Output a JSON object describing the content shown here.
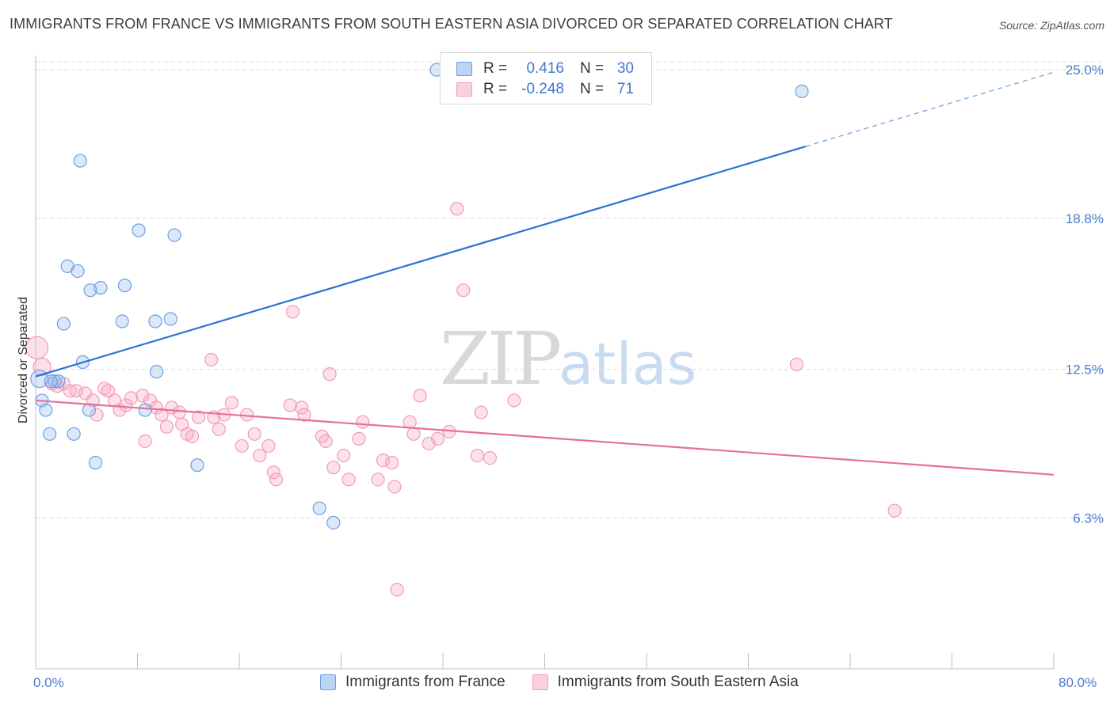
{
  "header": {
    "title": "IMMIGRANTS FROM FRANCE VS IMMIGRANTS FROM SOUTH EASTERN ASIA DIVORCED OR SEPARATED CORRELATION CHART",
    "source": "Source: ZipAtlas.com"
  },
  "watermark": {
    "zip": "ZIP",
    "atlas": "atlas"
  },
  "legend": {
    "france": {
      "r_key": "R =",
      "r_val": "0.416",
      "n_key": "N =",
      "n_val": "30"
    },
    "sea": {
      "r_key": "R =",
      "r_val": "-0.248",
      "n_key": "N =",
      "n_val": "71"
    }
  },
  "bottom_legend": {
    "france": "Immigrants from France",
    "sea": "Immigrants from South Eastern Asia"
  },
  "axes": {
    "x_min_label": "0.0%",
    "x_max_label": "80.0%"
  },
  "chart_data": {
    "type": "scatter",
    "title": "IMMIGRANTS FROM FRANCE VS IMMIGRANTS FROM SOUTH EASTERN ASIA DIVORCED OR SEPARATED CORRELATION CHART",
    "xlabel": "",
    "ylabel": "Divorced or Separated",
    "xlim": [
      0,
      80
    ],
    "ylim": [
      0,
      25.6
    ],
    "y_ticks": [
      {
        "value": 6.3,
        "label": "6.3%"
      },
      {
        "value": 12.5,
        "label": "12.5%"
      },
      {
        "value": 18.8,
        "label": "18.8%"
      },
      {
        "value": 25.0,
        "label": "25.0%"
      }
    ],
    "grid": true,
    "colors": {
      "france": "#6f9fe0",
      "sea": "#f29bb8",
      "france_line": "#2e72d2",
      "sea_line": "#e56f9b"
    },
    "series": [
      {
        "key": "france",
        "name": "Immigrants from France",
        "points": [
          [
            0.3,
            12.1
          ],
          [
            0.5,
            11.2
          ],
          [
            0.8,
            10.8
          ],
          [
            1.1,
            9.8
          ],
          [
            1.5,
            12.0
          ],
          [
            1.8,
            12.0
          ],
          [
            2.2,
            14.4
          ],
          [
            2.5,
            16.8
          ],
          [
            3.0,
            9.8
          ],
          [
            3.3,
            16.6
          ],
          [
            3.5,
            21.2
          ],
          [
            3.7,
            12.8
          ],
          [
            4.2,
            10.8
          ],
          [
            4.3,
            15.8
          ],
          [
            4.7,
            8.6
          ],
          [
            5.1,
            15.9
          ],
          [
            6.8,
            14.5
          ],
          [
            7.0,
            16.0
          ],
          [
            8.1,
            18.3
          ],
          [
            8.6,
            10.8
          ],
          [
            9.4,
            14.5
          ],
          [
            9.5,
            12.4
          ],
          [
            10.6,
            14.6
          ],
          [
            10.9,
            18.1
          ],
          [
            12.7,
            8.5
          ],
          [
            22.3,
            6.7
          ],
          [
            23.4,
            6.1
          ],
          [
            31.5,
            25.0
          ],
          [
            60.2,
            24.1
          ],
          [
            1.2,
            12.0
          ]
        ]
      },
      {
        "key": "sea",
        "name": "Immigrants from South Eastern Asia",
        "points": [
          [
            0.1,
            13.4
          ],
          [
            0.5,
            12.6
          ],
          [
            1.3,
            11.9
          ],
          [
            1.7,
            11.8
          ],
          [
            2.2,
            11.9
          ],
          [
            2.7,
            11.6
          ],
          [
            3.2,
            11.6
          ],
          [
            3.9,
            11.5
          ],
          [
            4.5,
            11.2
          ],
          [
            4.8,
            10.6
          ],
          [
            5.4,
            11.7
          ],
          [
            5.7,
            11.6
          ],
          [
            6.2,
            11.2
          ],
          [
            6.6,
            10.8
          ],
          [
            7.1,
            11.0
          ],
          [
            7.5,
            11.3
          ],
          [
            8.4,
            11.4
          ],
          [
            8.6,
            9.5
          ],
          [
            9.0,
            11.2
          ],
          [
            9.5,
            10.9
          ],
          [
            9.9,
            10.6
          ],
          [
            10.3,
            10.1
          ],
          [
            10.7,
            10.9
          ],
          [
            11.3,
            10.7
          ],
          [
            11.5,
            10.2
          ],
          [
            11.9,
            9.8
          ],
          [
            12.3,
            9.7
          ],
          [
            12.8,
            10.5
          ],
          [
            13.8,
            12.9
          ],
          [
            14.0,
            10.5
          ],
          [
            14.4,
            10.0
          ],
          [
            14.8,
            10.6
          ],
          [
            15.4,
            11.1
          ],
          [
            16.2,
            9.3
          ],
          [
            16.6,
            10.6
          ],
          [
            17.2,
            9.8
          ],
          [
            17.6,
            8.9
          ],
          [
            18.3,
            9.3
          ],
          [
            18.7,
            8.2
          ],
          [
            18.9,
            7.9
          ],
          [
            20.0,
            11.0
          ],
          [
            20.2,
            14.9
          ],
          [
            20.9,
            10.9
          ],
          [
            21.1,
            10.6
          ],
          [
            22.5,
            9.7
          ],
          [
            22.8,
            9.5
          ],
          [
            23.1,
            12.3
          ],
          [
            23.4,
            8.4
          ],
          [
            24.2,
            8.9
          ],
          [
            24.6,
            7.9
          ],
          [
            25.4,
            9.6
          ],
          [
            25.7,
            10.3
          ],
          [
            26.9,
            7.9
          ],
          [
            27.3,
            8.7
          ],
          [
            28.0,
            8.6
          ],
          [
            28.2,
            7.6
          ],
          [
            28.4,
            3.3
          ],
          [
            29.4,
            10.3
          ],
          [
            29.7,
            9.8
          ],
          [
            30.2,
            11.4
          ],
          [
            30.9,
            9.4
          ],
          [
            31.6,
            9.6
          ],
          [
            32.5,
            9.9
          ],
          [
            33.1,
            19.2
          ],
          [
            33.6,
            15.8
          ],
          [
            34.7,
            8.9
          ],
          [
            35.0,
            10.7
          ],
          [
            35.7,
            8.8
          ],
          [
            37.6,
            11.2
          ],
          [
            59.8,
            12.7
          ],
          [
            67.5,
            6.6
          ]
        ]
      }
    ],
    "trend_lines": [
      {
        "series": "france",
        "from": [
          0,
          12.2
        ],
        "to": [
          60.5,
          21.8
        ],
        "dashed_to": [
          80,
          24.9
        ]
      },
      {
        "series": "sea",
        "from": [
          0,
          11.2
        ],
        "to": [
          80,
          8.1
        ]
      }
    ]
  }
}
